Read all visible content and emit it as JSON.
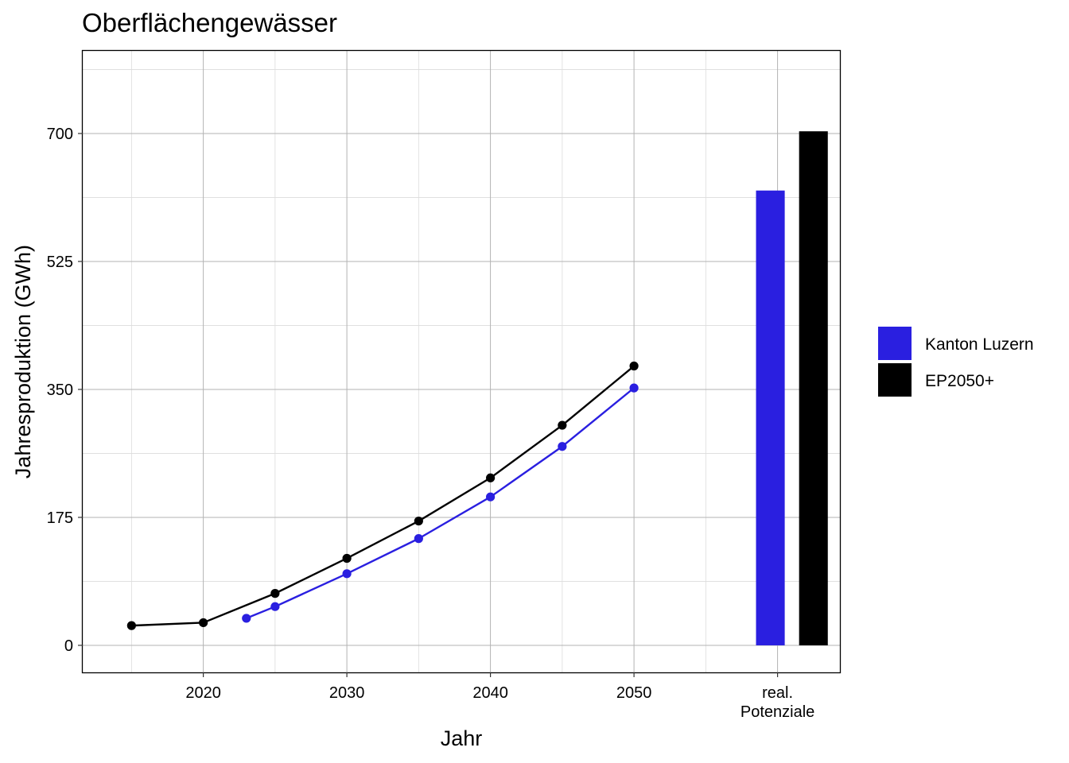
{
  "chart_data": {
    "type": "line",
    "title": "Oberflächengewässer",
    "xlabel": "Jahr",
    "ylabel": "Jahresproduktion (GWh)",
    "xlim": [
      2011.6,
      2064.4
    ],
    "ylim": [
      -37,
      813
    ],
    "x_ticks": [
      2020,
      2030,
      2040,
      2050
    ],
    "x_tick_labels": [
      "2020",
      "2030",
      "2040",
      "2050"
    ],
    "extra_x_tick": {
      "x": 2060,
      "label": [
        "real.",
        "Potenziale"
      ]
    },
    "y_ticks": [
      0,
      175,
      350,
      525,
      700
    ],
    "y_tick_labels": [
      "0",
      "175",
      "350",
      "525",
      "700"
    ],
    "grid": true,
    "legend_position": "right",
    "series": [
      {
        "name": "Kanton Luzern",
        "color": "#2A1FE0",
        "x": [
          2023,
          2025,
          2030,
          2035,
          2040,
          2045,
          2050
        ],
        "y": [
          37,
          53,
          98,
          146,
          203,
          272,
          352
        ]
      },
      {
        "name": "EP2050+",
        "color": "#000000",
        "x": [
          2015,
          2020,
          2025,
          2030,
          2035,
          2040,
          2045,
          2050
        ],
        "y": [
          27,
          31,
          71,
          119,
          170,
          229,
          301,
          382
        ]
      }
    ],
    "potential_bars": [
      {
        "series": "Kanton Luzern",
        "x_start": 2058.5,
        "x_end": 2060.5,
        "value": 622,
        "color": "#2A1FE0"
      },
      {
        "series": "EP2050+",
        "x_start": 2061.5,
        "x_end": 2063.5,
        "value": 703,
        "color": "#000000"
      }
    ]
  }
}
